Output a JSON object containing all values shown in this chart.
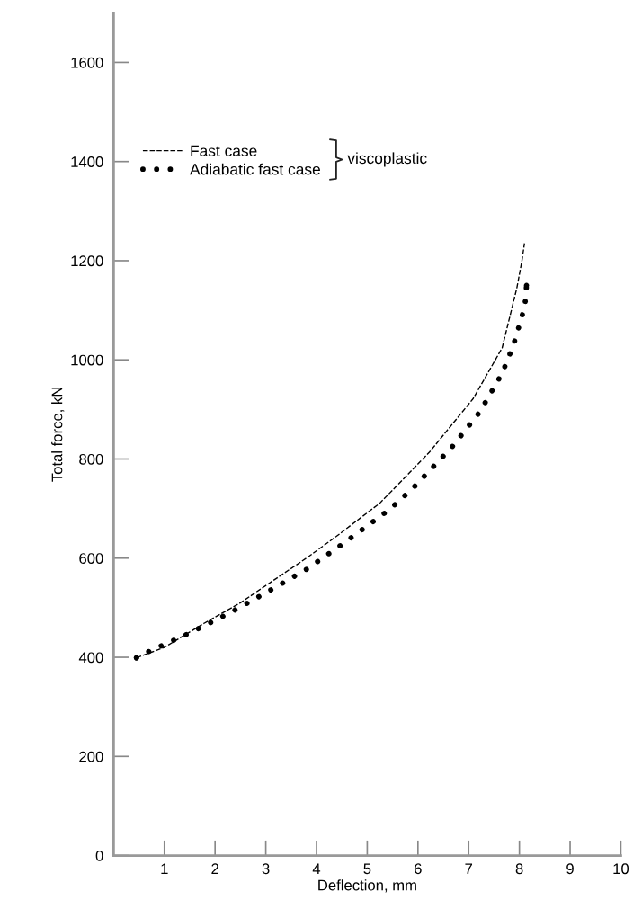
{
  "chart_data": {
    "type": "line",
    "xlabel": "Deflection, mm",
    "ylabel": "Total force, kN",
    "xlim": [
      0,
      10
    ],
    "ylim": [
      0,
      1700
    ],
    "xticks": [
      1,
      2,
      3,
      4,
      5,
      6,
      7,
      8,
      9,
      10
    ],
    "yticks": [
      0,
      200,
      400,
      600,
      800,
      1000,
      1200,
      1400,
      1600
    ],
    "grid": false,
    "legend": "top left",
    "annotations": [
      "viscoplastic"
    ],
    "series": [
      {
        "name": "Fast case",
        "color": "#000000",
        "line_style": "dashed",
        "x": [
          0.45,
          1.0,
          1.79,
          2.5,
          3.12,
          3.8,
          4.38,
          5.07,
          5.24,
          6.22,
          7.09,
          7.66,
          7.95,
          8.05,
          8.1
        ],
        "values": [
          399,
          420,
          469,
          510,
          553,
          600,
          643,
          697,
          710,
          813,
          922,
          1024,
          1145,
          1200,
          1235
        ]
      },
      {
        "name": "Adiabatic fast case",
        "color": "#000000",
        "line_style": "dotted",
        "x": [
          0.45,
          0.72,
          1.5,
          2.28,
          3.05,
          3.81,
          4.52,
          5.45,
          5.88,
          6.67,
          7.22,
          7.66,
          7.88,
          8.05,
          8.12,
          8.14
        ],
        "values": [
          399,
          413,
          449,
          489,
          533,
          578,
          629,
          699,
          739,
          824,
          895,
          973,
          1029,
          1087,
          1120,
          1150
        ]
      }
    ]
  }
}
